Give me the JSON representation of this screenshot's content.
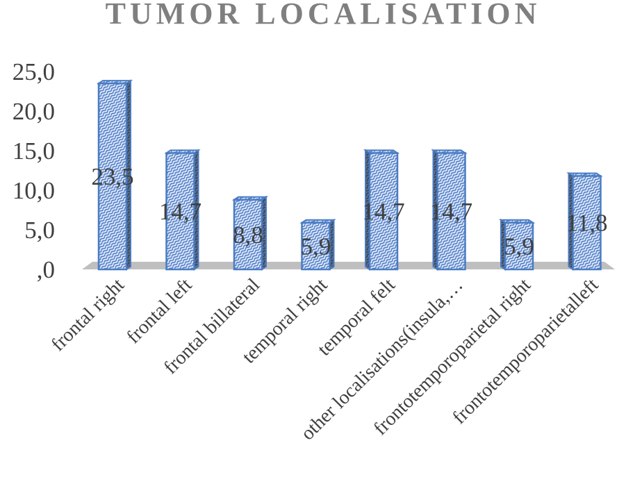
{
  "chart_data": {
    "type": "bar",
    "title": "TUMOR LOCALISATION",
    "categories": [
      "frontal right",
      "frontal left",
      "frontal billateral",
      "temporal right",
      "temporal felt",
      "other localisations(insula,…",
      "frontotemporoparietal right",
      "frontotemporoparietalleft"
    ],
    "values": [
      23.5,
      14.7,
      8.8,
      5.9,
      14.7,
      14.7,
      5.9,
      11.8
    ],
    "data_labels": [
      "23,5",
      "14,7",
      "8,8",
      "5,9",
      "14,7",
      "14,7",
      "5,9",
      "11,8"
    ],
    "yticks": [
      ",0",
      "5,0",
      "10,0",
      "15,0",
      "20,0",
      "25,0"
    ],
    "ytick_values": [
      0,
      5,
      10,
      15,
      20,
      25
    ],
    "ylim": [
      0,
      25
    ],
    "xlabel": "",
    "ylabel": "",
    "grid": false,
    "legend": "none",
    "style": "3d-column-pattern",
    "colors": {
      "bar_fill": "#dbe7f6",
      "bar_pattern": "#4472c4",
      "bar_edge": "#4a7cc4",
      "bar_side": "#5a6b80",
      "floor": "#bfbfbf",
      "text": "#404040",
      "title": "#7f7f7f"
    }
  }
}
